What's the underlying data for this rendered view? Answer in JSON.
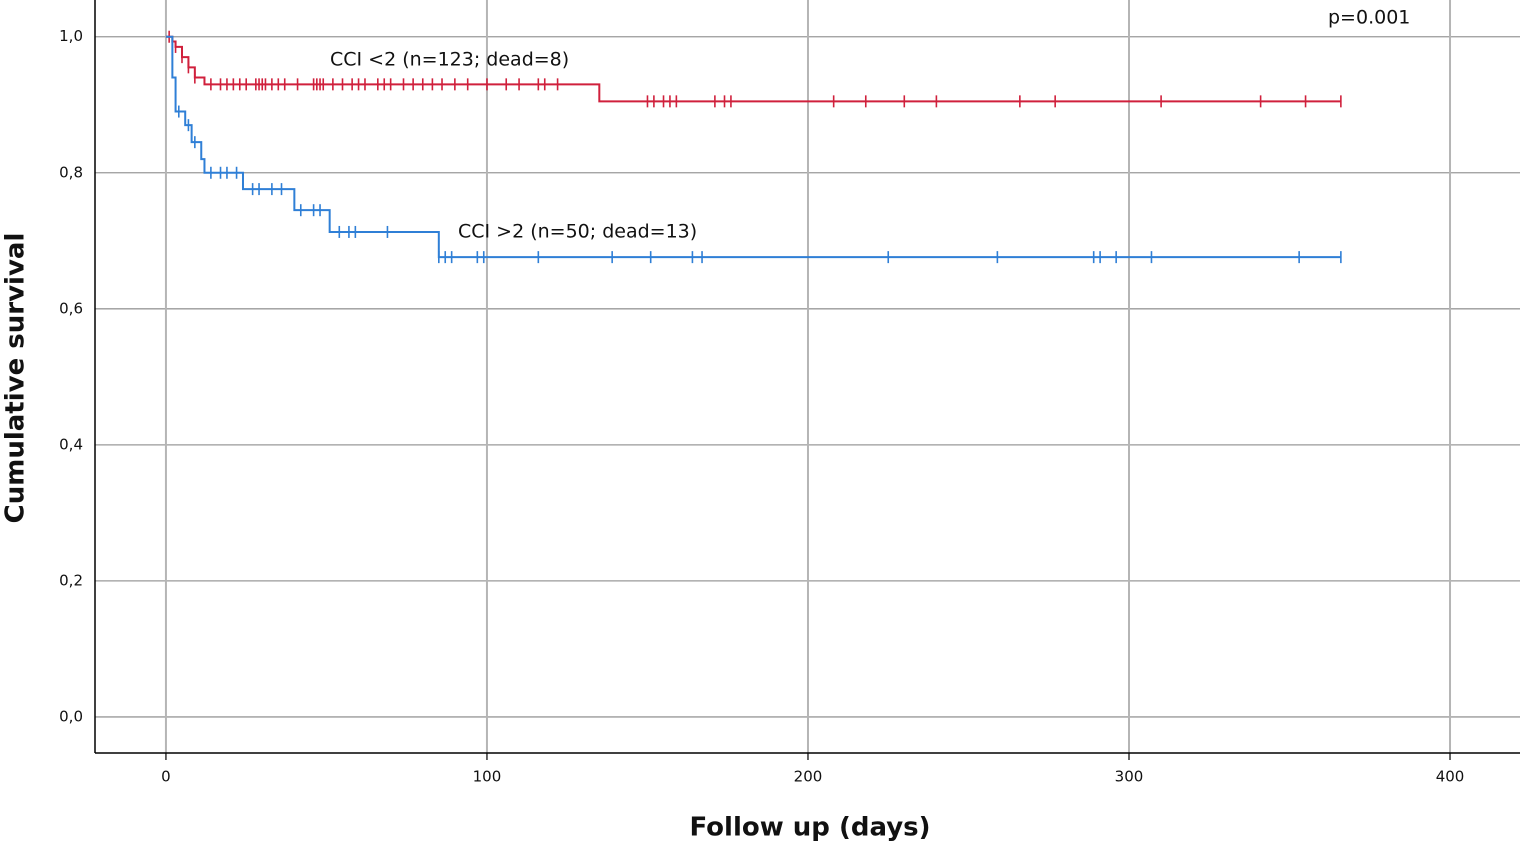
{
  "chart_data": {
    "type": "kaplan-meier",
    "x_label": "Follow up (days)",
    "y_label": "Cumulative survival",
    "annotation": "p=0.001",
    "xlim": [
      -22.1,
      421.8
    ],
    "ylim": [
      -0.053,
      1.054
    ],
    "xticks": [
      0,
      100,
      200,
      300,
      400
    ],
    "yticks": [
      {
        "value": 0,
        "label": "0,0"
      },
      {
        "value": 0.2,
        "label": "0,2"
      },
      {
        "value": 0.4,
        "label": "0,4"
      },
      {
        "value": 0.6,
        "label": "0,6"
      },
      {
        "value": 0.8,
        "label": "0,8"
      },
      {
        "value": 1,
        "label": "1,0"
      }
    ],
    "grid": true,
    "series": [
      {
        "name": "CCI <2 (n=123; dead=8)",
        "color": "#d0203c",
        "x": [
          0,
          2,
          3,
          5,
          7,
          9,
          12,
          135,
          366
        ],
        "values": [
          1.0,
          0.993,
          0.985,
          0.97,
          0.955,
          0.94,
          0.93,
          0.905,
          0.905
        ],
        "censored": {
          "x": [
            1,
            3,
            5,
            7,
            9,
            14,
            17,
            19,
            21,
            23,
            25,
            28,
            29,
            30,
            31,
            33,
            35,
            37,
            41,
            46,
            47,
            48,
            49,
            52,
            55,
            58,
            60,
            62,
            66,
            68,
            70,
            74,
            77,
            80,
            83,
            86,
            90,
            94,
            100,
            106,
            110,
            116,
            118,
            122,
            150,
            152,
            155,
            157,
            159,
            171,
            174,
            176,
            208,
            218,
            230,
            240,
            266,
            277,
            310,
            341,
            355,
            366
          ],
          "values": [
            1.0,
            0.985,
            0.97,
            0.955,
            0.94,
            0.93,
            0.93,
            0.93,
            0.93,
            0.93,
            0.93,
            0.93,
            0.93,
            0.93,
            0.93,
            0.93,
            0.93,
            0.93,
            0.93,
            0.93,
            0.93,
            0.93,
            0.93,
            0.93,
            0.93,
            0.93,
            0.93,
            0.93,
            0.93,
            0.93,
            0.93,
            0.93,
            0.93,
            0.93,
            0.93,
            0.93,
            0.93,
            0.93,
            0.93,
            0.93,
            0.93,
            0.93,
            0.93,
            0.93,
            0.905,
            0.905,
            0.905,
            0.905,
            0.905,
            0.905,
            0.905,
            0.905,
            0.905,
            0.905,
            0.905,
            0.905,
            0.905,
            0.905,
            0.905,
            0.905,
            0.905,
            0.905
          ]
        }
      },
      {
        "name": "CCI >2 (n=50; dead=13)",
        "color": "#2f7fd6",
        "x": [
          0,
          2,
          3,
          6,
          8,
          11,
          12,
          24,
          40,
          51,
          85,
          366
        ],
        "values": [
          1.0,
          0.94,
          0.89,
          0.87,
          0.845,
          0.82,
          0.8,
          0.776,
          0.745,
          0.713,
          0.676,
          0.676
        ],
        "censored": {
          "x": [
            4,
            7,
            9,
            14,
            17,
            19,
            22,
            27,
            29,
            33,
            36,
            42,
            46,
            48,
            54,
            57,
            59,
            69,
            85,
            87,
            89,
            97,
            99,
            116,
            139,
            151,
            164,
            167,
            225,
            259,
            289,
            291,
            296,
            307,
            353,
            366
          ],
          "values": [
            0.89,
            0.87,
            0.845,
            0.8,
            0.8,
            0.8,
            0.8,
            0.776,
            0.776,
            0.776,
            0.776,
            0.745,
            0.745,
            0.745,
            0.713,
            0.713,
            0.713,
            0.713,
            0.676,
            0.676,
            0.676,
            0.676,
            0.676,
            0.676,
            0.676,
            0.676,
            0.676,
            0.676,
            0.676,
            0.676,
            0.676,
            0.676,
            0.676,
            0.676,
            0.676,
            0.676
          ]
        }
      }
    ]
  }
}
